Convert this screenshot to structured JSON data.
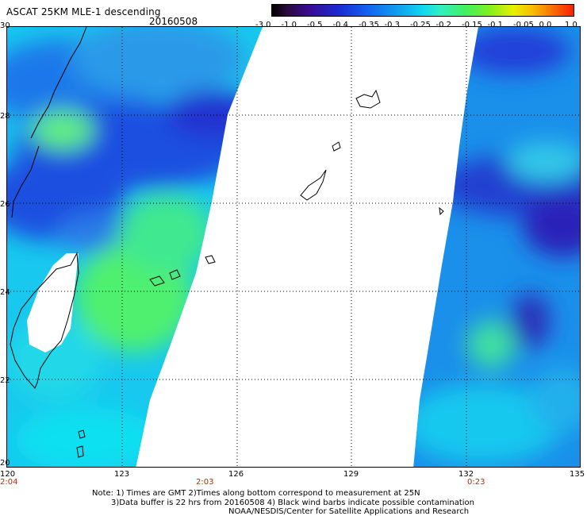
{
  "title": "ASCAT 25KM MLE-1 descending",
  "date": "20160508",
  "colorbar": {
    "labels": [
      "-3.0",
      "-1.0",
      "-0.5",
      "-0.4",
      "-0.35",
      "-0.3",
      "-0.25",
      "-0.2",
      "-0.15",
      "-0.1",
      "-0.05",
      "0.0",
      "1.0"
    ]
  },
  "axes": {
    "lat_labels": [
      "30",
      "28",
      "26",
      "24",
      "22",
      "20"
    ],
    "lon_labels": [
      "120",
      "123",
      "126",
      "129",
      "132",
      "135"
    ],
    "time_labels": [
      "2:04",
      "2:03",
      "0:23"
    ]
  },
  "notes": {
    "line1": "Note: 1) Times are GMT 2)Times along bottom correspond to measurement at 25N",
    "line2": "3)Data buffer is 22 hrs from 20160508 4) Black wind barbs indicate possible contamination",
    "line3": "NOAA/NESDIS/Center for Satellite Applications and Research"
  },
  "colors": {
    "blue_low": "#1e50e0",
    "cyan_mid": "#10d8f0",
    "green_high": "#40f060",
    "time_label": "#cc2200"
  }
}
